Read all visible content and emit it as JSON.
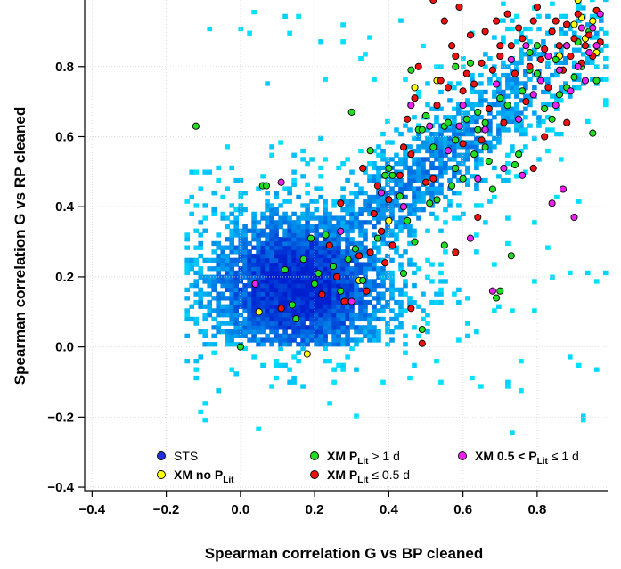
{
  "chart_data": {
    "type": "scatter",
    "xlabel": "Spearman correlation G vs BP cleaned",
    "ylabel": "Spearman correlation G vs RP cleaned",
    "xlim": [
      -0.42,
      0.99
    ],
    "ylim": [
      -0.41,
      0.99
    ],
    "xticks": [
      "−0.4",
      "−0.2",
      "0.0",
      "0.2",
      "0.4",
      "0.6",
      "0.8"
    ],
    "yticks": [
      "−0.4",
      "−0.2",
      "0.0",
      "0.2",
      "0.4",
      "0.6",
      "0.8"
    ],
    "xtick_values": [
      -0.4,
      -0.2,
      0.0,
      0.2,
      0.4,
      0.6,
      0.8
    ],
    "ytick_values": [
      -0.4,
      -0.2,
      0.0,
      0.2,
      0.4,
      0.6,
      0.8
    ],
    "grid": true,
    "legend_position": "bottom",
    "background_density": {
      "name": "STS",
      "color": "#1f4fe0",
      "description_colors": [
        "#00e0ff",
        "#0020d0"
      ]
    },
    "legend": [
      {
        "key": "sts",
        "text": "STS",
        "sub": "",
        "tail": "",
        "color": "#2030e0",
        "bold": false
      },
      {
        "key": "xm_no_plit",
        "text": "XM no P",
        "sub": "Lit",
        "tail": "",
        "color": "#ffff00",
        "bold": true
      },
      {
        "key": "xm_gt_1d",
        "text": "XM P",
        "sub": "Lit",
        "tail": " > 1 d",
        "color": "#22dd22",
        "bold": true
      },
      {
        "key": "xm_le_05d",
        "text": "XM P",
        "sub": "Lit",
        "tail": " ≤ 0.5 d",
        "color": "#ee1111",
        "bold": true
      },
      {
        "key": "xm_05_1d",
        "text": "XM 0.5 < P",
        "sub": "Lit",
        "tail": " ≤ 1 d",
        "color": "#ee22ee",
        "bold": true
      }
    ],
    "series": [
      {
        "name": "XM no P_Lit",
        "color": "#ffff00",
        "points": [
          [
            0.05,
            0.1
          ],
          [
            0.18,
            -0.02
          ],
          [
            0.32,
            0.19
          ],
          [
            0.4,
            0.36
          ],
          [
            0.47,
            0.74
          ],
          [
            0.53,
            0.76
          ],
          [
            0.88,
            0.86
          ],
          [
            0.9,
            0.92
          ],
          [
            0.92,
            0.94
          ],
          [
            0.95,
            0.93
          ],
          [
            0.93,
            0.88
          ],
          [
            0.96,
            0.84
          ],
          [
            0.86,
            0.83
          ],
          [
            0.91,
            0.99
          ]
        ]
      },
      {
        "name": "XM P_Lit > 1 d",
        "color": "#22dd22",
        "points": [
          [
            -0.12,
            0.63
          ],
          [
            0.0,
            0.0
          ],
          [
            0.06,
            0.46
          ],
          [
            0.07,
            0.46
          ],
          [
            0.12,
            0.22
          ],
          [
            0.14,
            0.12
          ],
          [
            0.15,
            0.08
          ],
          [
            0.17,
            0.25
          ],
          [
            0.2,
            0.18
          ],
          [
            0.21,
            0.21
          ],
          [
            0.19,
            0.31
          ],
          [
            0.23,
            0.32
          ],
          [
            0.25,
            0.23
          ],
          [
            0.27,
            0.16
          ],
          [
            0.29,
            0.25
          ],
          [
            0.31,
            0.28
          ],
          [
            0.33,
            0.19
          ],
          [
            0.35,
            0.56
          ],
          [
            0.39,
            0.49
          ],
          [
            0.41,
            0.49
          ],
          [
            0.43,
            0.43
          ],
          [
            0.45,
            0.36
          ],
          [
            0.46,
            0.79
          ],
          [
            0.48,
            0.62
          ],
          [
            0.5,
            0.66
          ],
          [
            0.51,
            0.41
          ],
          [
            0.53,
            0.42
          ],
          [
            0.55,
            0.29
          ],
          [
            0.57,
            0.46
          ],
          [
            0.58,
            0.59
          ],
          [
            0.6,
            0.48
          ],
          [
            0.61,
            0.65
          ],
          [
            0.63,
            0.55
          ],
          [
            0.64,
            0.62
          ],
          [
            0.66,
            0.57
          ],
          [
            0.68,
            0.45
          ],
          [
            0.69,
            0.14
          ],
          [
            0.7,
            0.16
          ],
          [
            0.72,
            0.69
          ],
          [
            0.73,
            0.26
          ],
          [
            0.74,
            0.52
          ],
          [
            0.75,
            0.55
          ],
          [
            0.76,
            0.73
          ],
          [
            0.78,
            0.79
          ],
          [
            0.8,
            0.78
          ],
          [
            0.82,
            0.68
          ],
          [
            0.84,
            0.65
          ],
          [
            0.86,
            0.72
          ],
          [
            0.88,
            0.74
          ],
          [
            0.9,
            0.77
          ],
          [
            0.92,
            0.8
          ],
          [
            0.94,
            0.9
          ],
          [
            0.95,
            0.61
          ],
          [
            0.96,
            0.76
          ],
          [
            0.55,
            0.63
          ],
          [
            0.58,
            0.8
          ],
          [
            0.62,
            0.81
          ],
          [
            0.7,
            0.71
          ],
          [
            0.47,
            0.3
          ],
          [
            0.49,
            0.05
          ],
          [
            0.58,
            0.51
          ],
          [
            0.66,
            0.64
          ],
          [
            0.4,
            0.51
          ],
          [
            0.3,
            0.67
          ],
          [
            0.37,
            0.31
          ],
          [
            0.44,
            0.21
          ],
          [
            0.52,
            0.57
          ],
          [
            0.67,
            0.53
          ],
          [
            0.85,
            0.82
          ],
          [
            0.91,
            0.87
          ],
          [
            0.49,
            0.62
          ],
          [
            0.56,
            0.64
          ],
          [
            0.64,
            0.67
          ],
          [
            0.78,
            0.84
          ],
          [
            0.8,
            0.86
          ]
        ]
      },
      {
        "name": "XM P_Lit ≤ 0.5 d",
        "color": "#ee1111",
        "points": [
          [
            0.11,
            0.11
          ],
          [
            0.22,
            0.15
          ],
          [
            0.24,
            0.29
          ],
          [
            0.26,
            0.2
          ],
          [
            0.28,
            0.13
          ],
          [
            0.3,
            0.13
          ],
          [
            0.32,
            0.26
          ],
          [
            0.34,
            0.16
          ],
          [
            0.36,
            0.38
          ],
          [
            0.37,
            0.46
          ],
          [
            0.38,
            0.33
          ],
          [
            0.4,
            0.42
          ],
          [
            0.41,
            0.29
          ],
          [
            0.43,
            0.49
          ],
          [
            0.44,
            0.57
          ],
          [
            0.45,
            0.65
          ],
          [
            0.46,
            0.55
          ],
          [
            0.47,
            0.71
          ],
          [
            0.48,
            0.8
          ],
          [
            0.49,
            0.01
          ],
          [
            0.5,
            0.47
          ],
          [
            0.52,
            0.48
          ],
          [
            0.53,
            0.69
          ],
          [
            0.54,
            0.76
          ],
          [
            0.55,
            0.93
          ],
          [
            0.56,
            0.74
          ],
          [
            0.57,
            0.86
          ],
          [
            0.58,
            0.83
          ],
          [
            0.59,
            0.97
          ],
          [
            0.6,
            0.58
          ],
          [
            0.61,
            0.78
          ],
          [
            0.62,
            0.89
          ],
          [
            0.63,
            0.75
          ],
          [
            0.64,
            0.37
          ],
          [
            0.65,
            0.81
          ],
          [
            0.66,
            0.9
          ],
          [
            0.67,
            0.68
          ],
          [
            0.68,
            0.79
          ],
          [
            0.69,
            0.93
          ],
          [
            0.7,
            0.83
          ],
          [
            0.71,
            0.64
          ],
          [
            0.72,
            0.95
          ],
          [
            0.73,
            0.86
          ],
          [
            0.74,
            0.78
          ],
          [
            0.75,
            0.91
          ],
          [
            0.76,
            0.88
          ],
          [
            0.77,
            0.7
          ],
          [
            0.78,
            0.8
          ],
          [
            0.79,
            0.93
          ],
          [
            0.8,
            0.97
          ],
          [
            0.81,
            0.82
          ],
          [
            0.82,
            0.85
          ],
          [
            0.83,
            0.74
          ],
          [
            0.84,
            0.9
          ],
          [
            0.85,
            0.93
          ],
          [
            0.86,
            0.86
          ],
          [
            0.87,
            0.79
          ],
          [
            0.88,
            0.92
          ],
          [
            0.89,
            0.83
          ],
          [
            0.9,
            0.88
          ],
          [
            0.91,
            0.95
          ],
          [
            0.92,
            0.81
          ],
          [
            0.93,
            0.86
          ],
          [
            0.94,
            0.89
          ],
          [
            0.95,
            0.83
          ],
          [
            0.96,
            0.96
          ],
          [
            0.97,
            0.87
          ],
          [
            0.58,
            0.27
          ],
          [
            0.46,
            0.11
          ],
          [
            0.39,
            0.24
          ],
          [
            0.33,
            0.51
          ],
          [
            0.27,
            0.41
          ],
          [
            0.52,
            0.99
          ],
          [
            0.6,
            0.73
          ],
          [
            0.65,
            0.59
          ],
          [
            0.7,
            0.86
          ],
          [
            0.82,
            0.6
          ],
          [
            0.88,
            0.64
          ],
          [
            0.79,
            0.51
          ],
          [
            0.35,
            0.27
          ]
        ]
      },
      {
        "name": "XM 0.5 < P_Lit ≤ 1 d",
        "color": "#ee22ee",
        "points": [
          [
            0.04,
            0.18
          ],
          [
            0.11,
            0.47
          ],
          [
            0.27,
            0.33
          ],
          [
            0.3,
            0.13
          ],
          [
            0.38,
            0.44
          ],
          [
            0.44,
            0.4
          ],
          [
            0.46,
            0.69
          ],
          [
            0.51,
            0.63
          ],
          [
            0.56,
            0.56
          ],
          [
            0.59,
            0.63
          ],
          [
            0.62,
            0.31
          ],
          [
            0.64,
            0.48
          ],
          [
            0.66,
            0.62
          ],
          [
            0.68,
            0.16
          ],
          [
            0.71,
            0.51
          ],
          [
            0.73,
            0.82
          ],
          [
            0.75,
            0.65
          ],
          [
            0.77,
            0.86
          ],
          [
            0.79,
            0.72
          ],
          [
            0.81,
            0.76
          ],
          [
            0.83,
            0.83
          ],
          [
            0.84,
            0.41
          ],
          [
            0.85,
            0.69
          ],
          [
            0.86,
            0.79
          ],
          [
            0.87,
            0.45
          ],
          [
            0.88,
            0.86
          ],
          [
            0.89,
            0.73
          ],
          [
            0.9,
            0.37
          ],
          [
            0.91,
            0.8
          ],
          [
            0.92,
            0.91
          ],
          [
            0.93,
            0.76
          ],
          [
            0.94,
            0.84
          ],
          [
            0.95,
            0.91
          ],
          [
            0.96,
            0.86
          ],
          [
            0.97,
            0.95
          ],
          [
            0.6,
            0.69
          ],
          [
            0.69,
            0.75
          ],
          [
            0.76,
            0.49
          ]
        ]
      }
    ]
  }
}
